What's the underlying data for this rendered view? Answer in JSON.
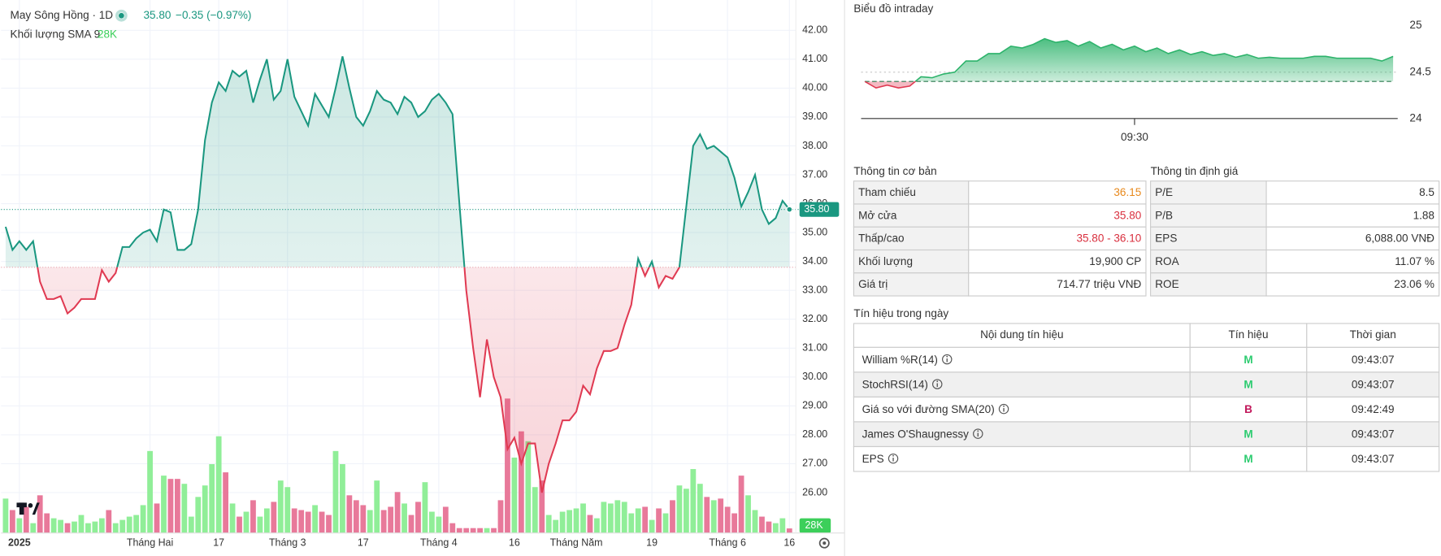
{
  "header": {
    "title": "May Sông Hồng · 1D",
    "price": "35.80",
    "change": "−0.35 (−0.97%)",
    "volume_label": "Khối lượng SMA 9",
    "volume_sma": "28K"
  },
  "chart_data": [
    {
      "type": "line",
      "color_up": "#1a9780",
      "color_down": "#e03a52",
      "baseline": 33.8,
      "categories": [
        null,
        null,
        "2025",
        null,
        null,
        null,
        null,
        null,
        null,
        null,
        null,
        null,
        null,
        null,
        null,
        null,
        null,
        null,
        null,
        null,
        null,
        "Tháng Hai",
        null,
        null,
        null,
        null,
        null,
        null,
        null,
        null,
        null,
        "17",
        null,
        null,
        null,
        null,
        null,
        null,
        null,
        null,
        null,
        "Tháng 3",
        null,
        null,
        null,
        null,
        null,
        null,
        null,
        null,
        null,
        null,
        "17",
        null,
        null,
        null,
        null,
        null,
        null,
        null,
        null,
        null,
        null,
        "Tháng 4",
        null,
        null,
        null,
        null,
        null,
        null,
        null,
        null,
        null,
        null,
        "16",
        null,
        null,
        null,
        null,
        null,
        null,
        null,
        null,
        "Tháng Năm",
        null,
        null,
        null,
        null,
        null,
        null,
        null,
        null,
        null,
        null,
        "19",
        null,
        null,
        null,
        null,
        null,
        null,
        null,
        null,
        null,
        null,
        "Tháng 6",
        null,
        null,
        null,
        null,
        null,
        null,
        null,
        null,
        "16"
      ],
      "values": [
        35.2,
        34.4,
        34.7,
        34.4,
        34.7,
        33.3,
        32.7,
        32.7,
        32.8,
        32.2,
        32.4,
        32.7,
        32.7,
        32.7,
        33.7,
        33.3,
        33.6,
        34.5,
        34.5,
        34.8,
        35.0,
        35.1,
        34.7,
        35.8,
        35.7,
        34.4,
        34.4,
        34.6,
        35.8,
        38.2,
        39.5,
        40.2,
        39.9,
        40.6,
        40.4,
        40.6,
        39.5,
        40.3,
        41.0,
        39.6,
        39.9,
        41.0,
        39.7,
        39.2,
        38.7,
        39.8,
        39.4,
        39.0,
        40.0,
        41.1,
        40.0,
        39.0,
        38.7,
        39.2,
        39.9,
        39.6,
        39.5,
        39.1,
        39.7,
        39.5,
        39.0,
        39.2,
        39.6,
        39.8,
        39.5,
        39.1,
        36.0,
        33.0,
        31.0,
        29.3,
        31.3,
        30.0,
        29.3,
        27.5,
        27.9,
        27.0,
        27.7,
        27.7,
        26.0,
        27.0,
        27.7,
        28.5,
        28.5,
        28.8,
        29.7,
        29.4,
        30.3,
        30.9,
        30.9,
        31.0,
        31.8,
        32.5,
        34.1,
        33.5,
        34.0,
        33.1,
        33.5,
        33.4,
        33.8,
        35.9,
        38.0,
        38.4,
        37.9,
        38.0,
        37.8,
        37.6,
        36.9,
        35.9,
        36.4,
        37.0,
        35.8,
        35.3,
        35.5,
        36.1,
        35.8
      ],
      "volume": [
        210000,
        140000,
        90000,
        160000,
        60000,
        230000,
        120000,
        90000,
        80000,
        60000,
        70000,
        110000,
        60000,
        70000,
        90000,
        140000,
        60000,
        80000,
        100000,
        110000,
        170000,
        500000,
        180000,
        350000,
        330000,
        330000,
        300000,
        100000,
        220000,
        290000,
        420000,
        590000,
        370000,
        180000,
        100000,
        130000,
        200000,
        100000,
        150000,
        190000,
        320000,
        280000,
        150000,
        140000,
        130000,
        170000,
        130000,
        110000,
        500000,
        420000,
        230000,
        200000,
        170000,
        140000,
        320000,
        140000,
        160000,
        250000,
        180000,
        110000,
        190000,
        310000,
        130000,
        100000,
        160000,
        60000,
        30000,
        30000,
        30000,
        30000,
        30000,
        30000,
        200000,
        820000,
        460000,
        620000,
        560000,
        280000,
        320000,
        110000,
        80000,
        130000,
        140000,
        150000,
        180000,
        110000,
        90000,
        190000,
        180000,
        200000,
        190000,
        120000,
        150000,
        160000,
        80000,
        150000,
        120000,
        200000,
        290000,
        270000,
        390000,
        300000,
        220000,
        200000,
        210000,
        160000,
        120000,
        350000,
        230000,
        140000,
        100000,
        70000,
        60000,
        90000,
        28000
      ],
      "volume_labels": {
        "114": "28K"
      },
      "volume_colors": {
        "up": "#90ee98",
        "down": "#e8799a"
      },
      "volume_ylim": [
        0,
        3250000
      ],
      "ylim": [
        24.6,
        43.05
      ],
      "yticks": [
        {
          "value": 42,
          "label": "42.00"
        },
        {
          "value": 41,
          "label": "41.00"
        },
        {
          "value": 40,
          "label": "40.00"
        },
        {
          "value": 39,
          "label": "39.00"
        },
        {
          "value": 38,
          "label": "38.00"
        },
        {
          "value": 37,
          "label": "37.00"
        },
        {
          "value": 36,
          "label": "36.00"
        },
        {
          "value": 35,
          "label": "35.00"
        },
        {
          "value": 34,
          "label": "34.00"
        },
        {
          "value": 33,
          "label": "33.00"
        },
        {
          "value": 32,
          "label": "32.00"
        },
        {
          "value": 31,
          "label": "31.00"
        },
        {
          "value": 30,
          "label": "30.00"
        },
        {
          "value": 29,
          "label": "29.00"
        },
        {
          "value": 28,
          "label": "28.00"
        },
        {
          "value": 27,
          "label": "27.00"
        },
        {
          "value": 26,
          "label": "26.00"
        }
      ],
      "grid": true
    },
    {
      "type": "line",
      "title": "Biểu đồ intraday",
      "color_up": "#2db36b",
      "color_down": "#e03a52",
      "baseline": 24.4,
      "categories": [
        null,
        null,
        null,
        null,
        null,
        null,
        null,
        null,
        null,
        null,
        null,
        null,
        null,
        null,
        null,
        null,
        null,
        null,
        null,
        null,
        null,
        null,
        null,
        null,
        "09:30",
        null,
        null,
        null,
        null,
        null,
        null,
        null,
        null,
        null,
        null,
        null,
        null,
        null,
        null,
        null,
        null,
        null,
        null,
        null,
        null,
        null,
        null,
        null
      ],
      "values": [
        24.4,
        24.33,
        24.36,
        24.33,
        24.35,
        24.45,
        24.44,
        24.48,
        24.5,
        24.62,
        24.62,
        24.7,
        24.7,
        24.78,
        24.76,
        24.8,
        24.86,
        24.82,
        24.84,
        24.78,
        24.83,
        24.76,
        24.8,
        24.74,
        24.78,
        24.72,
        24.76,
        24.7,
        24.74,
        24.69,
        24.72,
        24.68,
        24.7,
        24.66,
        24.69,
        24.65,
        24.66,
        24.65,
        24.65,
        24.65,
        24.67,
        24.67,
        24.65,
        24.65,
        24.65,
        24.65,
        24.62,
        24.67
      ],
      "ylim": [
        24,
        25
      ],
      "yticks": [
        25,
        24.5,
        24
      ]
    }
  ],
  "basic_info": {
    "title": "Thông tin cơ bản",
    "rows": [
      {
        "label": "Tham chiếu",
        "value": "36.15",
        "color": "#e8891c"
      },
      {
        "label": "Mở cửa",
        "value": "35.80",
        "color": "#d9303f"
      },
      {
        "label": "Thấp/cao",
        "value": "35.80 - 36.10",
        "color": "#d9303f"
      },
      {
        "label": "Khối lượng",
        "value": "19,900 CP"
      },
      {
        "label": "Giá trị",
        "value": "714.77 triệu VNĐ"
      }
    ]
  },
  "valuation": {
    "title": "Thông tin định giá",
    "rows": [
      {
        "label": "P/E",
        "value": "8.5"
      },
      {
        "label": "P/B",
        "value": "1.88"
      },
      {
        "label": "EPS",
        "value": "6,088.00 VNĐ"
      },
      {
        "label": "ROA",
        "value": "11.07 %"
      },
      {
        "label": "ROE",
        "value": "23.06 %"
      }
    ]
  },
  "signals": {
    "title": "Tín hiệu trong ngày",
    "columns": [
      "Nội dung tín hiệu",
      "Tín hiệu",
      "Thời gian"
    ],
    "rows": [
      {
        "name": "William %R(14)",
        "signal": "M",
        "time": "09:43:07",
        "color": "#2ecc71"
      },
      {
        "name": "StochRSI(14)",
        "signal": "M",
        "time": "09:43:07",
        "color": "#2ecc71"
      },
      {
        "name": "Giá so với đường SMA(20)",
        "signal": "B",
        "time": "09:42:49",
        "color": "#c2185b"
      },
      {
        "name": "James O'Shaugnessy",
        "signal": "M",
        "time": "09:43:07",
        "color": "#2ecc71"
      },
      {
        "name": "EPS",
        "signal": "M",
        "time": "09:43:07",
        "color": "#2ecc71"
      }
    ]
  }
}
